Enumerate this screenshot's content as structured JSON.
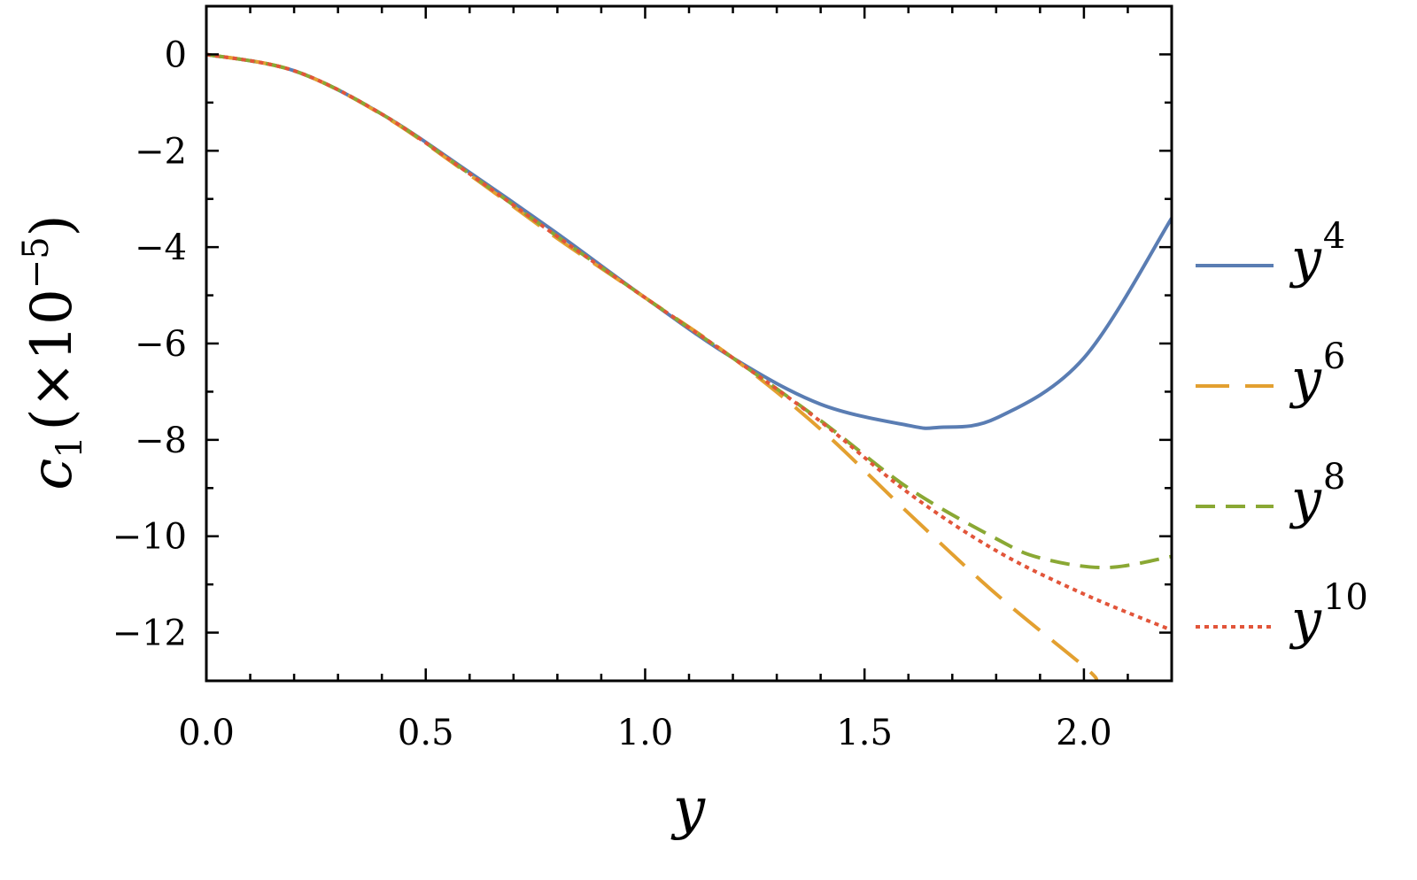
{
  "chart_data": {
    "type": "line",
    "xlabel": "y",
    "ylabel": {
      "symbol": "c",
      "subscript": "1",
      "scale_prefix": "(×10",
      "scale_exponent": "−5",
      "scale_suffix": ")"
    },
    "xlim": [
      0,
      2.2
    ],
    "ylim": [
      -13,
      1
    ],
    "x_ticks": [
      {
        "value": 0.0,
        "label": "0.0"
      },
      {
        "value": 0.5,
        "label": "0.5"
      },
      {
        "value": 1.0,
        "label": "1.0"
      },
      {
        "value": 1.5,
        "label": "1.5"
      },
      {
        "value": 2.0,
        "label": "2.0"
      }
    ],
    "y_ticks": [
      {
        "value": 0,
        "label": "0"
      },
      {
        "value": -2,
        "label": "−2"
      },
      {
        "value": -4,
        "label": "−4"
      },
      {
        "value": -6,
        "label": "−6"
      },
      {
        "value": -8,
        "label": "−8"
      },
      {
        "value": -10,
        "label": "−10"
      },
      {
        "value": -12,
        "label": "−12"
      }
    ],
    "grid": false,
    "legend_position": "right",
    "series": [
      {
        "name": "y",
        "exponent": "4",
        "color": "#5a7db3",
        "dash": "",
        "x": [
          0,
          0.2,
          0.4,
          0.6,
          0.8,
          1.0,
          1.2,
          1.4,
          1.6,
          1.67,
          1.8,
          2.0,
          2.2
        ],
        "y": [
          0,
          -0.34,
          -1.24,
          -2.45,
          -3.72,
          -5.05,
          -6.3,
          -7.26,
          -7.7,
          -7.74,
          -7.55,
          -6.3,
          -3.4
        ]
      },
      {
        "name": "y",
        "exponent": "6",
        "color": "#e3a030",
        "dash": "38,18",
        "x": [
          0,
          0.2,
          0.4,
          0.6,
          0.8,
          1.0,
          1.2,
          1.4,
          1.6,
          1.8,
          2.0,
          2.03
        ],
        "y": [
          0,
          -0.34,
          -1.25,
          -2.5,
          -3.82,
          -5.05,
          -6.3,
          -7.78,
          -9.52,
          -11.2,
          -12.7,
          -13.0
        ]
      },
      {
        "name": "y",
        "exponent": "8",
        "color": "#8aa834",
        "dash": "22,12",
        "x": [
          0,
          0.2,
          0.4,
          0.6,
          0.8,
          1.0,
          1.2,
          1.4,
          1.6,
          1.8,
          1.9,
          2.05,
          2.2
        ],
        "y": [
          0,
          -0.34,
          -1.24,
          -2.48,
          -3.78,
          -5.05,
          -6.3,
          -7.6,
          -9.0,
          -10.05,
          -10.45,
          -10.65,
          -10.42
        ]
      },
      {
        "name": "y",
        "exponent": "10",
        "color": "#e2553a",
        "dash": "5,5",
        "x": [
          0,
          0.2,
          0.4,
          0.6,
          0.8,
          1.0,
          1.2,
          1.4,
          1.6,
          1.8,
          2.0,
          2.2
        ],
        "y": [
          0,
          -0.34,
          -1.24,
          -2.48,
          -3.78,
          -5.05,
          -6.3,
          -7.62,
          -9.1,
          -10.3,
          -11.2,
          -11.95
        ]
      }
    ]
  }
}
